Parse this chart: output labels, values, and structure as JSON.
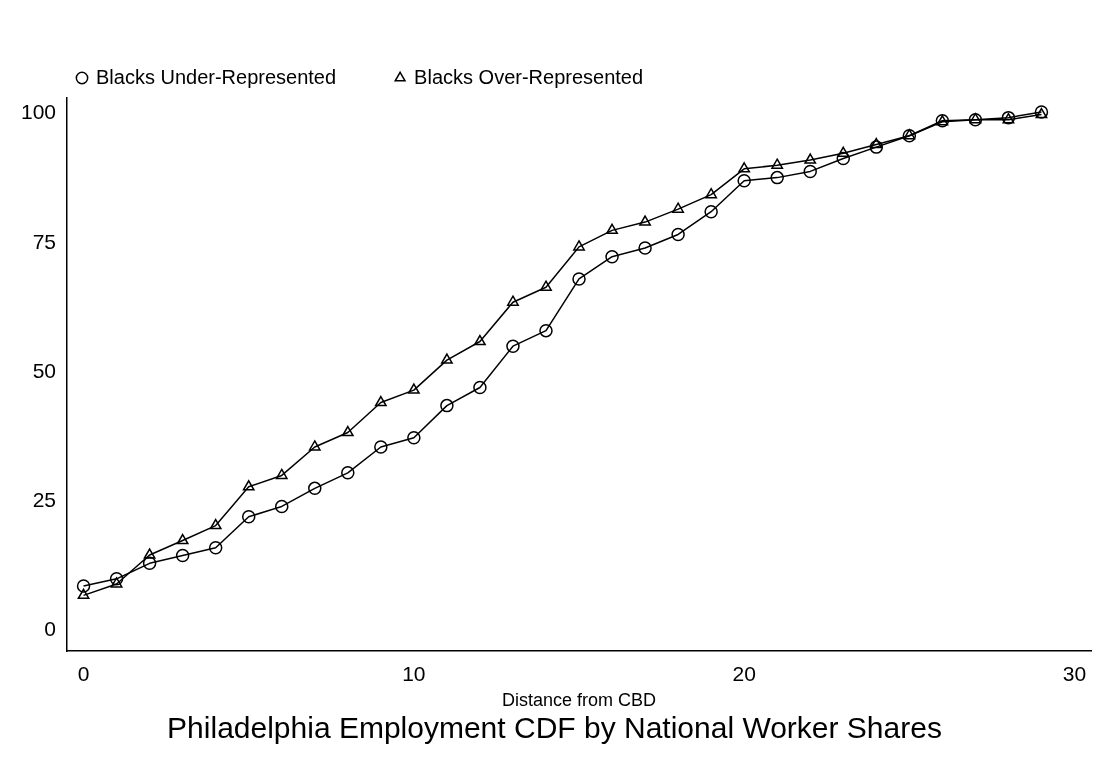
{
  "chart_data": {
    "type": "line",
    "title": "Philadelphia Employment CDF by National Worker Shares",
    "xlabel": "Distance from CBD",
    "x": [
      0,
      1,
      2,
      3,
      4,
      5,
      6,
      7,
      8,
      9,
      10,
      11,
      12,
      13,
      14,
      15,
      16,
      17,
      18,
      19,
      20,
      21,
      22,
      23,
      24,
      25,
      26,
      27,
      28,
      29
    ],
    "series": [
      {
        "name": "Blacks Under-Represented",
        "color": "#000000",
        "marker": "circle",
        "values": [
          8.6,
          10,
          13,
          14.5,
          16,
          22,
          24,
          27.5,
          30.5,
          35.5,
          37.3,
          43.5,
          47,
          55,
          58,
          68,
          72.3,
          74,
          76.6,
          81,
          87,
          87.6,
          88.8,
          91.3,
          93.5,
          95.7,
          98.6,
          98.8,
          99.2,
          100.3
        ]
      },
      {
        "name": "Blacks Over-Represented",
        "color": "#000000",
        "marker": "triangle",
        "values": [
          6.8,
          9,
          14.6,
          17.4,
          20.3,
          27.8,
          30,
          35.5,
          38.3,
          44.1,
          46.5,
          52.3,
          55.9,
          63.5,
          66.4,
          74.2,
          77.4,
          79,
          81.5,
          84.3,
          89.3,
          90,
          91,
          92.3,
          94,
          95.7,
          98.4,
          98.8,
          98.8,
          99.8
        ]
      }
    ],
    "xlim": [
      -0.5,
      30.5
    ],
    "xticks": [
      0,
      10,
      20,
      30
    ],
    "ylim": [
      -4,
      103
    ],
    "yticks": [
      0,
      25,
      50,
      75,
      100
    ],
    "grid": false,
    "legend": "top left",
    "line_style": "solid"
  }
}
